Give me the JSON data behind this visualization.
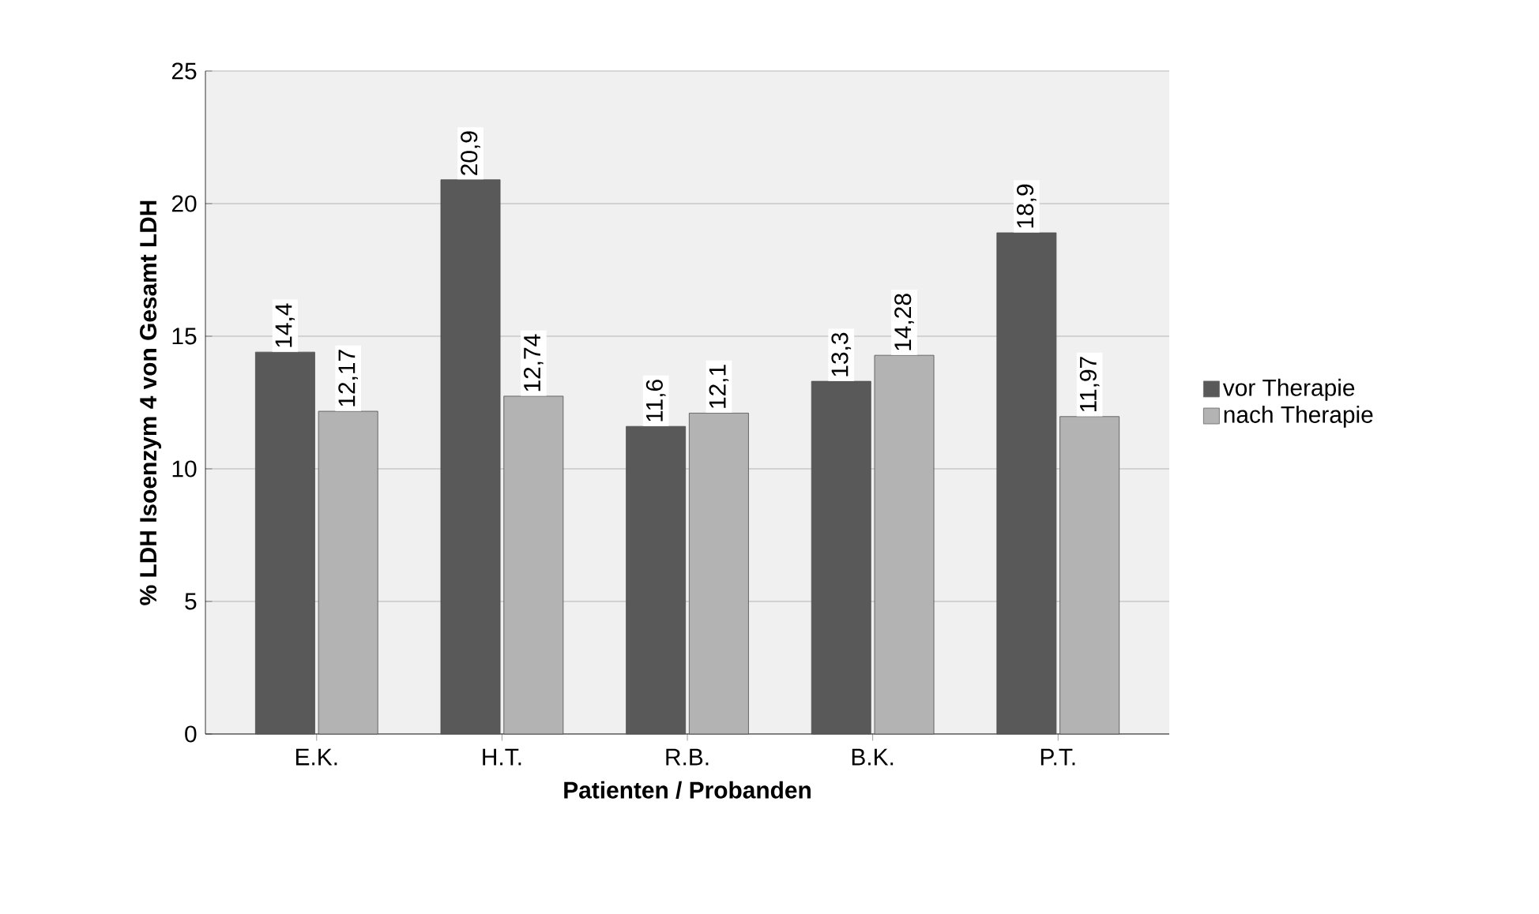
{
  "chart_data": {
    "type": "bar",
    "xlabel": "Patienten / Probanden",
    "ylabel": "% LDH Isoenzym 4 von Gesamt LDH",
    "categories": [
      "E.K.",
      "H.T.",
      "R.B.",
      "B.K.",
      "P.T."
    ],
    "series": [
      {
        "name": "vor Therapie",
        "color": "#595959",
        "values": [
          14.4,
          20.9,
          11.6,
          13.3,
          18.9
        ],
        "value_labels": [
          "14,4",
          "20,9",
          "11,6",
          "13,3",
          "18,9"
        ]
      },
      {
        "name": "nach Therapie",
        "color": "#b3b3b3",
        "values": [
          12.17,
          12.74,
          12.1,
          14.28,
          11.97
        ],
        "value_labels": [
          "12,17",
          "12,74",
          "12,1",
          "14,28",
          "11,97"
        ]
      }
    ],
    "ylim": [
      0,
      25
    ],
    "yticks": [
      0,
      5,
      10,
      15,
      20,
      25
    ],
    "grid": "y",
    "legend": "right"
  }
}
